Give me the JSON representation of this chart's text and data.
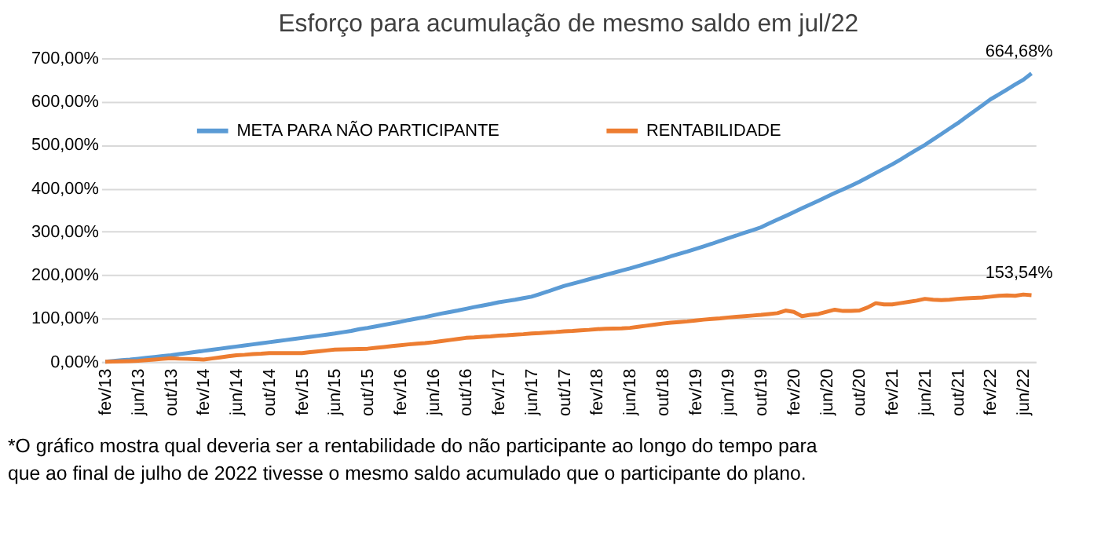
{
  "chart_data": {
    "type": "line",
    "title": "Esforço para acumulação de mesmo saldo em jul/22",
    "categories": [
      "fev/13",
      null,
      null,
      null,
      "jun/13",
      null,
      null,
      null,
      "out/13",
      null,
      null,
      null,
      "fev/14",
      null,
      null,
      null,
      "jun/14",
      null,
      null,
      null,
      "out/14",
      null,
      null,
      null,
      "fev/15",
      null,
      null,
      null,
      "jun/15",
      null,
      null,
      null,
      "out/15",
      null,
      null,
      null,
      "fev/16",
      null,
      null,
      null,
      "jun/16",
      null,
      null,
      null,
      "out/16",
      null,
      null,
      null,
      "fev/17",
      null,
      null,
      null,
      "jun/17",
      null,
      null,
      null,
      "out/17",
      null,
      null,
      null,
      "fev/18",
      null,
      null,
      null,
      "jun/18",
      null,
      null,
      null,
      "out/18",
      null,
      null,
      null,
      "fev/19",
      null,
      null,
      null,
      "jun/19",
      null,
      null,
      null,
      "out/19",
      null,
      null,
      null,
      "fev/20",
      null,
      null,
      null,
      "jun/20",
      null,
      null,
      null,
      "out/20",
      null,
      null,
      null,
      "fev/21",
      null,
      null,
      null,
      "jun/21",
      null,
      null,
      null,
      "out/21",
      null,
      null,
      null,
      "fev/22",
      null,
      null,
      null,
      "jun/22",
      null
    ],
    "series": [
      {
        "name": "META PARA NÃO PARTICIPANTE",
        "color": "#5b9bd5",
        "values": [
          0,
          2,
          3.5,
          5,
          7,
          9,
          11,
          13,
          15,
          17.5,
          20,
          22.5,
          25,
          27.5,
          30,
          32.5,
          35,
          37.5,
          40,
          42.5,
          45,
          47.5,
          50,
          52.5,
          55,
          57.5,
          60,
          62.5,
          65,
          68,
          71,
          75,
          78,
          81.5,
          85,
          88.5,
          92,
          96,
          99.5,
          103,
          107,
          111,
          114.5,
          118,
          122,
          126,
          129.5,
          133,
          137,
          140,
          143,
          146.5,
          150,
          156,
          162,
          168.5,
          175,
          180,
          185,
          190,
          195,
          200,
          205,
          210,
          215,
          220.5,
          226,
          231.5,
          237,
          243,
          248.5,
          254,
          260,
          266,
          272,
          278.5,
          285,
          291,
          297.5,
          303.5,
          310,
          319,
          327.5,
          336,
          345,
          354,
          362.5,
          371,
          380,
          389,
          397.5,
          406,
          415,
          425,
          435,
          445,
          455,
          466,
          477.5,
          489,
          500,
          512.5,
          525,
          537.5,
          550,
          564,
          577.5,
          591,
          605,
          616,
          627.5,
          639,
          650,
          664.68
        ]
      },
      {
        "name": "RENTABILIDADE",
        "color": "#ed7d31",
        "values": [
          0,
          0.5,
          1,
          1.5,
          2,
          3.5,
          5,
          6.5,
          8,
          7,
          6.5,
          6,
          5,
          7.5,
          10,
          12.5,
          15,
          16,
          17.5,
          18.5,
          20,
          20,
          20,
          20,
          20,
          22,
          24,
          26,
          28,
          28.5,
          29,
          29.5,
          30,
          32,
          34,
          36,
          38,
          40,
          41.5,
          43,
          45,
          47.5,
          50,
          52.5,
          55,
          56,
          57.5,
          58.5,
          60,
          61,
          62.5,
          63.5,
          65,
          66,
          67.5,
          68.5,
          70,
          71,
          72.5,
          73.5,
          75,
          76,
          76.5,
          77,
          78,
          80.5,
          83,
          85.5,
          88,
          90,
          91.5,
          93,
          95,
          97,
          98.5,
          100,
          102,
          103.5,
          105,
          106.5,
          108,
          110,
          112,
          118,
          115,
          105,
          108,
          110,
          115,
          120,
          117,
          117,
          118,
          125,
          135,
          132,
          132,
          135,
          138,
          141,
          145,
          143,
          142,
          143,
          145,
          146,
          147,
          148,
          150,
          152,
          153,
          152,
          155,
          153.54
        ]
      }
    ],
    "ylim": [
      0,
      700
    ],
    "yticks": [
      {
        "value": 0,
        "label": "0,00%"
      },
      {
        "value": 100,
        "label": "100,00%"
      },
      {
        "value": 200,
        "label": "200,00%"
      },
      {
        "value": 300,
        "label": "300,00%"
      },
      {
        "value": 400,
        "label": "400,00%"
      },
      {
        "value": 500,
        "label": "500,00%"
      },
      {
        "value": 600,
        "label": "600,00%"
      },
      {
        "value": 700,
        "label": "700,00%"
      }
    ],
    "grid": "y",
    "legend": "top",
    "annotations": [
      {
        "text": "664,68%",
        "y": 664.68
      },
      {
        "text": "153,54%",
        "y": 153.54
      },
      "*O gráfico mostra qual deveria ser a rentabilidade do não participante ao longo do tempo para que ao final de julho de 2022  tivesse o mesmo saldo acumulado que o participante do plano."
    ]
  }
}
